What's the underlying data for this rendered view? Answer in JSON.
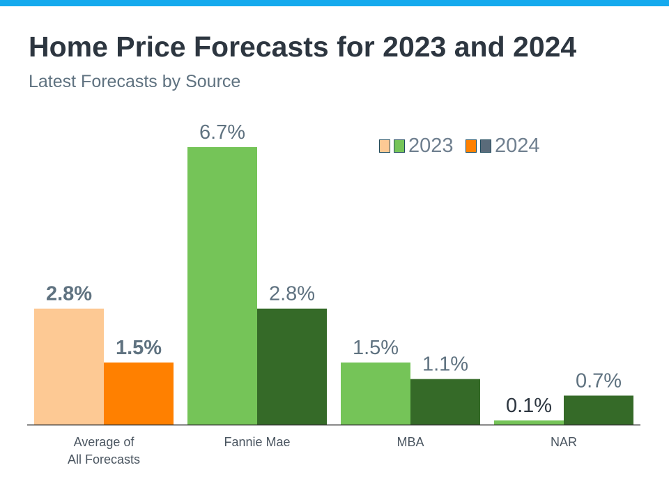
{
  "header": {
    "title": "Home Price Forecasts for 2023 and 2024",
    "subtitle": "Latest Forecasts by Source"
  },
  "colors": {
    "top_bar": "#15aaee",
    "average_2023": "#fdc994",
    "average_2024": "#ff8000",
    "source_2023": "#75c458",
    "source_2024": "#356a28",
    "legend_2024_alt": "#5a6b7a",
    "label_text": "#5f7280"
  },
  "legend": [
    {
      "label": "2023"
    },
    {
      "label": "2024"
    }
  ],
  "chart_data": {
    "type": "bar",
    "title": "Home Price Forecasts for 2023 and 2024",
    "subtitle": "Latest Forecasts by Source",
    "categories": [
      "Average of\nAll Forecasts",
      "Fannie Mae",
      "MBA",
      "NAR"
    ],
    "series": [
      {
        "name": "2023",
        "values": [
          2.8,
          6.7,
          1.5,
          0.1
        ],
        "labels": [
          "2.8%",
          "6.7%",
          "1.5%",
          "0.1%"
        ]
      },
      {
        "name": "2024",
        "values": [
          1.5,
          2.8,
          1.1,
          0.7
        ],
        "labels": [
          "1.5%",
          "2.8%",
          "1.1%",
          "0.7%"
        ]
      }
    ],
    "unit": "%",
    "ylim": [
      0,
      6.7
    ],
    "grid": false,
    "legend_position": "top-right"
  }
}
